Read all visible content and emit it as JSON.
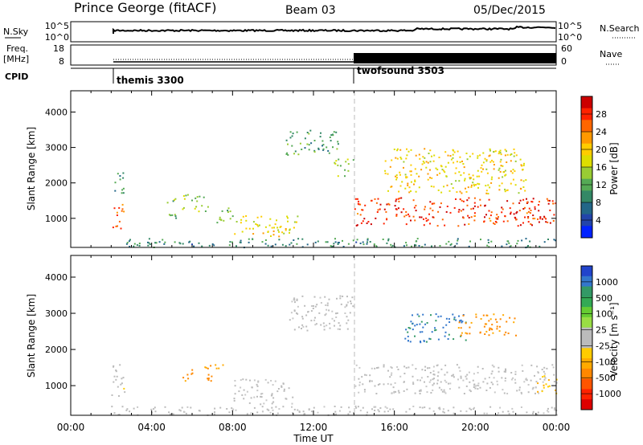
{
  "header": {
    "station": "Prince George (fitACF)",
    "beam": "Beam 03",
    "date": "05/Dec/2015"
  },
  "top_panels": {
    "nsky_label": "N.Sky",
    "nsky_ticks": [
      "10^5",
      "10^0"
    ],
    "nsearch_label": "N.Search",
    "nsearch_ticks": [
      "10^5",
      "10^0"
    ],
    "freq_label": "Freq.",
    "freq_unit": "[MHz]",
    "freq_ticks": [
      "18",
      "8"
    ],
    "nave_label": "Nave",
    "nave_ticks": [
      "60",
      "0"
    ],
    "cpid_label": "CPID",
    "cpid_segments": [
      {
        "name": "themis 3300",
        "start_hour": 2.0
      },
      {
        "name": "twofsound 3503",
        "start_hour": 14.0
      }
    ]
  },
  "power_panel": {
    "ylabel": "Slant Range [km]",
    "cbar_label": "Power [dB]",
    "cbar_ticks": [
      "28",
      "24",
      "20",
      "16",
      "12",
      "8",
      "4"
    ],
    "cbar_colors": [
      "#cc0000",
      "#ff2200",
      "#ff6600",
      "#ff9900",
      "#ffcc00",
      "#dddd00",
      "#99cc33",
      "#55aa55",
      "#338866",
      "#226688",
      "#2244aa",
      "#0022ff"
    ]
  },
  "velocity_panel": {
    "ylabel": "Slant Range [km]",
    "cbar_label": "Velocity [m s⁻¹]",
    "cbar_ticks": [
      "1000",
      "500",
      "100",
      "25",
      "-25",
      "-100",
      "-500",
      "-1000"
    ],
    "cbar_colors": [
      "#2244cc",
      "#3377cc",
      "#339966",
      "#33aa55",
      "#66cc33",
      "#99dd44",
      "#bbbbbb",
      "#bbbbbb",
      "#ffcc00",
      "#ffaa00",
      "#ff8800",
      "#ff5500",
      "#ff2200",
      "#dd0000"
    ]
  },
  "x_axis": {
    "label": "Time UT",
    "ticks": [
      "00:00",
      "04:00",
      "08:00",
      "12:00",
      "16:00",
      "20:00",
      "00:00"
    ]
  },
  "chart_data": [
    {
      "type": "heatmap",
      "title": "Prince George (fitACF) Beam 03 05/Dec/2015",
      "quantity": "Power [dB]",
      "xlabel": "Time UT",
      "ylabel": "Slant Range [km]",
      "xlim_hours": [
        0,
        24
      ],
      "ylim": [
        180,
        4600
      ],
      "yticks": [
        1000,
        2000,
        3000,
        4000
      ],
      "clim": [
        0,
        30
      ],
      "echo_regions": [
        {
          "t_start": 2.0,
          "t_end": 2.6,
          "r_low": 700,
          "r_high": 1500,
          "power": 24
        },
        {
          "t_start": 2.1,
          "t_end": 2.6,
          "r_low": 1500,
          "r_high": 2300,
          "power": 10
        },
        {
          "t_start": 4.6,
          "t_end": 5.2,
          "r_low": 1000,
          "r_high": 1600,
          "power": 12
        },
        {
          "t_start": 5.5,
          "t_end": 6.8,
          "r_low": 1200,
          "r_high": 1700,
          "power": 14
        },
        {
          "t_start": 7.2,
          "t_end": 8.0,
          "r_low": 900,
          "r_high": 1500,
          "power": 12
        },
        {
          "t_start": 8.0,
          "t_end": 11.2,
          "r_low": 500,
          "r_high": 1100,
          "power": 18
        },
        {
          "t_start": 10.6,
          "t_end": 13.2,
          "r_low": 2800,
          "r_high": 3500,
          "power": 10
        },
        {
          "t_start": 13.0,
          "t_end": 14.0,
          "r_low": 2200,
          "r_high": 2700,
          "power": 14
        },
        {
          "t_start": 14.0,
          "t_end": 24.0,
          "r_low": 800,
          "r_high": 1600,
          "power": 27
        },
        {
          "t_start": 15.5,
          "t_end": 22.5,
          "r_low": 1700,
          "r_high": 3000,
          "power": 18
        },
        {
          "t_start": 2.0,
          "t_end": 24.0,
          "r_low": 200,
          "r_high": 450,
          "power": 8
        }
      ]
    },
    {
      "type": "heatmap",
      "title": "Prince George (fitACF) Beam 03 05/Dec/2015",
      "quantity": "Velocity [m s⁻¹]",
      "xlabel": "Time UT",
      "ylabel": "Slant Range [km]",
      "xlim_hours": [
        0,
        24
      ],
      "ylim": [
        180,
        4600
      ],
      "yticks": [
        1000,
        2000,
        3000,
        4000
      ],
      "clim": [
        -1000,
        1000
      ],
      "echo_regions": [
        {
          "t_start": 2.0,
          "t_end": 2.7,
          "r_low": 700,
          "r_high": 1600,
          "velocity": -100
        },
        {
          "t_start": 5.5,
          "t_end": 6.0,
          "r_low": 1100,
          "r_high": 1600,
          "velocity": -500
        },
        {
          "t_start": 6.5,
          "t_end": 7.5,
          "r_low": 1100,
          "r_high": 1600,
          "velocity": -500
        },
        {
          "t_start": 8.0,
          "t_end": 11.0,
          "r_low": 500,
          "r_high": 1200,
          "velocity": 0
        },
        {
          "t_start": 10.8,
          "t_end": 14.0,
          "r_low": 2500,
          "r_high": 3500,
          "velocity": 0
        },
        {
          "t_start": 14.0,
          "t_end": 24.0,
          "r_low": 800,
          "r_high": 1600,
          "velocity": 0
        },
        {
          "t_start": 16.5,
          "t_end": 19.5,
          "r_low": 2200,
          "r_high": 3000,
          "velocity": 800
        },
        {
          "t_start": 19.0,
          "t_end": 22.0,
          "r_low": 2400,
          "r_high": 3000,
          "velocity": -500
        },
        {
          "t_start": 23.0,
          "t_end": 24.0,
          "r_low": 800,
          "r_high": 1300,
          "velocity": -300
        },
        {
          "t_start": 2.0,
          "t_end": 24.0,
          "r_low": 200,
          "r_high": 450,
          "velocity": 50
        }
      ]
    }
  ]
}
